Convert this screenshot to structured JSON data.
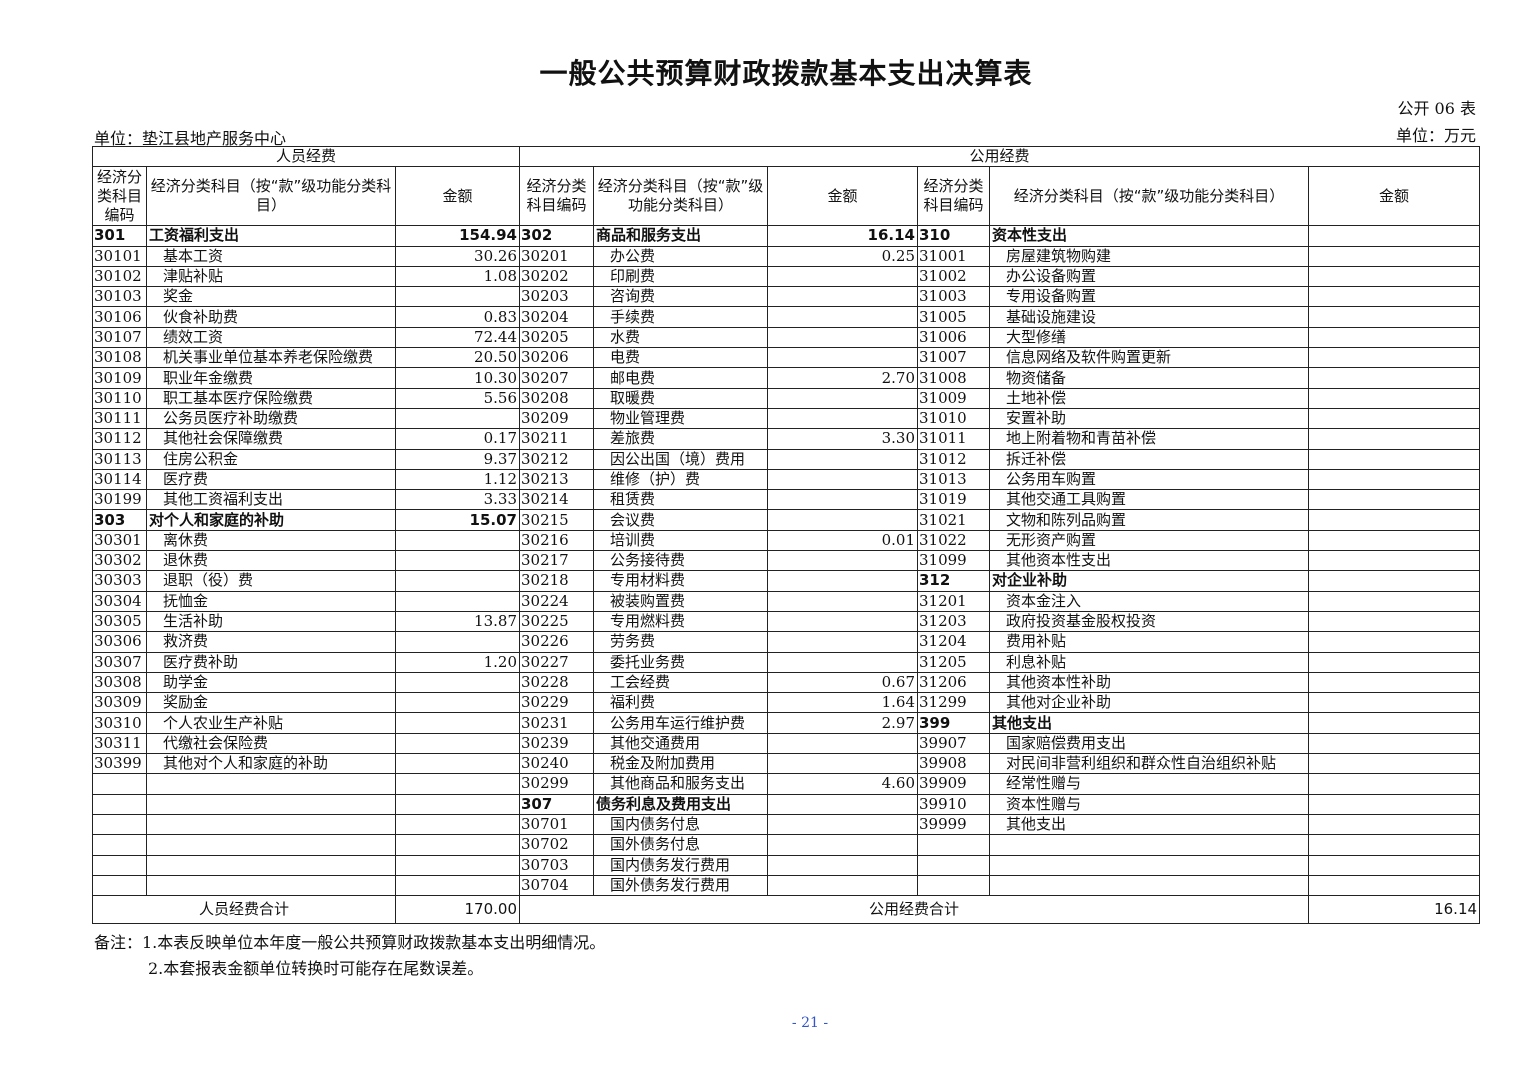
{
  "title": "一般公共预算财政拨款基本支出决算表",
  "form_no": "公开 06 表",
  "unit_org": "单位：垫江县地产服务中心",
  "unit_currency": "单位：万元",
  "headers": {
    "personnel": "人员经费",
    "public": "公用经费",
    "code": "经济分类科目编码",
    "code_mid": "经济分类科目编码",
    "name": "经济分类科目（按“款”级功能分类科目）",
    "amount": "金额"
  },
  "personnel_rows": [
    [
      "301",
      "工资福利支出",
      "154.94",
      1
    ],
    [
      "30101",
      "基本工资",
      "30.26",
      0
    ],
    [
      "30102",
      "津贴补贴",
      "1.08",
      0
    ],
    [
      "30103",
      "奖金",
      "",
      0
    ],
    [
      "30106",
      "伙食补助费",
      "0.83",
      0
    ],
    [
      "30107",
      "绩效工资",
      "72.44",
      0
    ],
    [
      "30108",
      "机关事业单位基本养老保险缴费",
      "20.50",
      0
    ],
    [
      "30109",
      "职业年金缴费",
      "10.30",
      0
    ],
    [
      "30110",
      "职工基本医疗保险缴费",
      "5.56",
      0
    ],
    [
      "30111",
      "公务员医疗补助缴费",
      "",
      0
    ],
    [
      "30112",
      "其他社会保障缴费",
      "0.17",
      0
    ],
    [
      "30113",
      "住房公积金",
      "9.37",
      0
    ],
    [
      "30114",
      "医疗费",
      "1.12",
      0
    ],
    [
      "30199",
      "其他工资福利支出",
      "3.33",
      0
    ],
    [
      "303",
      "对个人和家庭的补助",
      "15.07",
      1
    ],
    [
      "30301",
      "离休费",
      "",
      0
    ],
    [
      "30302",
      "退休费",
      "",
      0
    ],
    [
      "30303",
      "退职（役）费",
      "",
      0
    ],
    [
      "30304",
      "抚恤金",
      "",
      0
    ],
    [
      "30305",
      "生活补助",
      "13.87",
      0
    ],
    [
      "30306",
      "救济费",
      "",
      0
    ],
    [
      "30307",
      "医疗费补助",
      "1.20",
      0
    ],
    [
      "30308",
      "助学金",
      "",
      0
    ],
    [
      "30309",
      "奖励金",
      "",
      0
    ],
    [
      "30310",
      "个人农业生产补贴",
      "",
      0
    ],
    [
      "30311",
      "代缴社会保险费",
      "",
      0
    ],
    [
      "30399",
      "其他对个人和家庭的补助",
      "",
      0
    ]
  ],
  "public_rows_a": [
    [
      "302",
      "商品和服务支出",
      "16.14",
      1
    ],
    [
      "30201",
      "办公费",
      "0.25",
      0
    ],
    [
      "30202",
      "印刷费",
      "",
      0
    ],
    [
      "30203",
      "咨询费",
      "",
      0
    ],
    [
      "30204",
      "手续费",
      "",
      0
    ],
    [
      "30205",
      "水费",
      "",
      0
    ],
    [
      "30206",
      "电费",
      "",
      0
    ],
    [
      "30207",
      "邮电费",
      "2.70",
      0
    ],
    [
      "30208",
      "取暖费",
      "",
      0
    ],
    [
      "30209",
      "物业管理费",
      "",
      0
    ],
    [
      "30211",
      "差旅费",
      "3.30",
      0
    ],
    [
      "30212",
      "因公出国（境）费用",
      "",
      0
    ],
    [
      "30213",
      "维修（护）费",
      "",
      0
    ],
    [
      "30214",
      "租赁费",
      "",
      0
    ],
    [
      "30215",
      "会议费",
      "",
      0
    ],
    [
      "30216",
      "培训费",
      "0.01",
      0
    ],
    [
      "30217",
      "公务接待费",
      "",
      0
    ],
    [
      "30218",
      "专用材料费",
      "",
      0
    ],
    [
      "30224",
      "被装购置费",
      "",
      0
    ],
    [
      "30225",
      "专用燃料费",
      "",
      0
    ],
    [
      "30226",
      "劳务费",
      "",
      0
    ],
    [
      "30227",
      "委托业务费",
      "",
      0
    ],
    [
      "30228",
      "工会经费",
      "0.67",
      0
    ],
    [
      "30229",
      "福利费",
      "1.64",
      0
    ],
    [
      "30231",
      "公务用车运行维护费",
      "2.97",
      0
    ],
    [
      "30239",
      "其他交通费用",
      "",
      0
    ],
    [
      "30240",
      "税金及附加费用",
      "",
      0
    ],
    [
      "30299",
      "其他商品和服务支出",
      "4.60",
      0
    ],
    [
      "307",
      "债务利息及费用支出",
      "",
      1
    ],
    [
      "30701",
      "国内债务付息",
      "",
      0
    ],
    [
      "30702",
      "国外债务付息",
      "",
      0
    ],
    [
      "30703",
      "国内债务发行费用",
      "",
      0
    ],
    [
      "30704",
      "国外债务发行费用",
      "",
      0
    ]
  ],
  "public_rows_b": [
    [
      "310",
      "资本性支出",
      "",
      1
    ],
    [
      "31001",
      "房屋建筑物购建",
      "",
      0
    ],
    [
      "31002",
      "办公设备购置",
      "",
      0
    ],
    [
      "31003",
      "专用设备购置",
      "",
      0
    ],
    [
      "31005",
      "基础设施建设",
      "",
      0
    ],
    [
      "31006",
      "大型修缮",
      "",
      0
    ],
    [
      "31007",
      "信息网络及软件购置更新",
      "",
      0
    ],
    [
      "31008",
      "物资储备",
      "",
      0
    ],
    [
      "31009",
      "土地补偿",
      "",
      0
    ],
    [
      "31010",
      "安置补助",
      "",
      0
    ],
    [
      "31011",
      "地上附着物和青苗补偿",
      "",
      0
    ],
    [
      "31012",
      "拆迁补偿",
      "",
      0
    ],
    [
      "31013",
      "公务用车购置",
      "",
      0
    ],
    [
      "31019",
      "其他交通工具购置",
      "",
      0
    ],
    [
      "31021",
      "文物和陈列品购置",
      "",
      0
    ],
    [
      "31022",
      "无形资产购置",
      "",
      0
    ],
    [
      "31099",
      "其他资本性支出",
      "",
      0
    ],
    [
      "312",
      "对企业补助",
      "",
      1
    ],
    [
      "31201",
      "资本金注入",
      "",
      0
    ],
    [
      "31203",
      "政府投资基金股权投资",
      "",
      0
    ],
    [
      "31204",
      "费用补贴",
      "",
      0
    ],
    [
      "31205",
      "利息补贴",
      "",
      0
    ],
    [
      "31206",
      "其他资本性补助",
      "",
      0
    ],
    [
      "31299",
      "其他对企业补助",
      "",
      0
    ],
    [
      "399",
      "其他支出",
      "",
      1
    ],
    [
      "39907",
      "国家赔偿费用支出",
      "",
      0
    ],
    [
      "39908",
      "对民间非营利组织和群众性自治组织补贴",
      "",
      0
    ],
    [
      "39909",
      "经常性赠与",
      "",
      0
    ],
    [
      "39910",
      "资本性赠与",
      "",
      0
    ],
    [
      "39999",
      "其他支出",
      "",
      0
    ]
  ],
  "totals": {
    "personnel_label": "人员经费合计",
    "personnel_value": "170.00",
    "public_label": "公用经费合计",
    "public_value": "16.14"
  },
  "notes": [
    "备注：1.本表反映单位本年度一般公共预算财政拨款基本支出明细情况。",
    "2.本套报表金额单位转换时可能存在尾数误差。"
  ],
  "page_number": "- 21 -"
}
